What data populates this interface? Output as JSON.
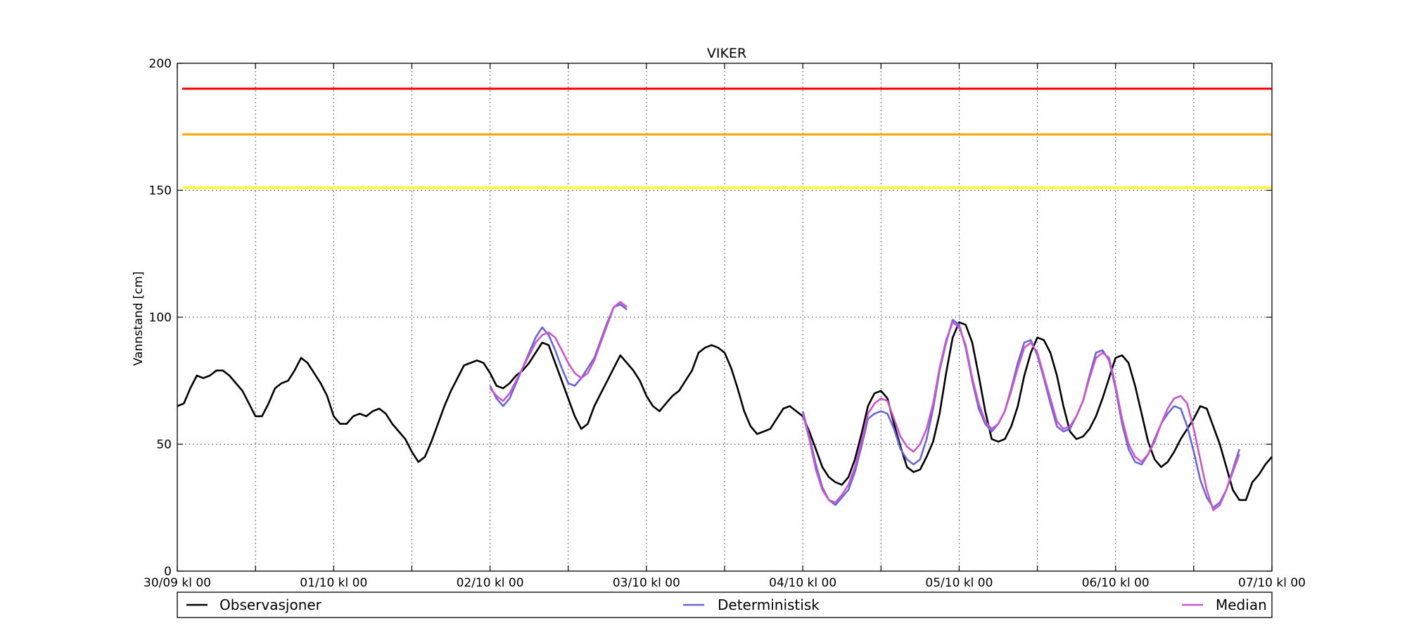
{
  "chart_data": {
    "type": "line",
    "title": "VIKER",
    "xlabel": "",
    "ylabel": "Vannstand [cm]",
    "ylim": [
      0,
      200
    ],
    "yticks": [
      0,
      50,
      100,
      150,
      200
    ],
    "xlim_hours": [
      0,
      168
    ],
    "xticks": [
      {
        "label": "30/09 kl 00",
        "hour": 0
      },
      {
        "label": "01/10 kl 00",
        "hour": 24
      },
      {
        "label": "02/10 kl 00",
        "hour": 48
      },
      {
        "label": "03/10 kl 00",
        "hour": 72
      },
      {
        "label": "04/10 kl 00",
        "hour": 96
      },
      {
        "label": "05/10 kl 00",
        "hour": 120
      },
      {
        "label": "06/10 kl 00",
        "hour": 144
      },
      {
        "label": "07/10 kl 00",
        "hour": 168
      }
    ],
    "minor_grid_hours": [
      12,
      36,
      60,
      84,
      108,
      132,
      156
    ],
    "grid": true,
    "legend_position": "bottom",
    "thresholds": [
      {
        "value": 190,
        "color": "#ff0000"
      },
      {
        "value": 172,
        "color": "#ffa500"
      },
      {
        "value": 151,
        "color": "#ffff00"
      }
    ],
    "series": [
      {
        "name": "Observasjoner",
        "color": "#000000",
        "x": [
          0,
          1,
          2,
          3,
          4,
          5,
          6,
          7,
          8,
          9,
          10,
          11,
          12,
          13,
          14,
          15,
          16,
          17,
          18,
          19,
          20,
          21,
          22,
          23,
          24,
          25,
          26,
          27,
          28,
          29,
          30,
          31,
          32,
          33,
          34,
          35,
          36,
          37,
          38,
          39,
          40,
          41,
          42,
          43,
          44,
          45,
          46,
          47,
          48,
          49,
          50,
          51,
          52,
          53,
          54,
          55,
          56,
          57,
          58,
          59,
          60,
          61,
          62,
          63,
          64,
          65,
          66,
          67,
          68,
          69,
          70,
          71,
          72,
          73,
          74,
          75,
          76,
          77,
          78,
          79,
          80,
          81,
          82,
          83,
          84,
          85,
          86,
          87,
          88,
          89,
          90,
          91,
          92,
          93,
          94,
          95,
          96,
          97,
          98,
          99,
          100,
          101,
          102,
          103,
          104,
          105,
          106,
          107,
          108,
          109,
          110,
          111,
          112,
          113,
          114,
          115,
          116,
          117,
          118,
          119,
          120,
          121,
          122,
          123,
          124,
          125,
          126,
          127,
          128,
          129,
          130,
          131,
          132,
          133,
          134,
          135,
          136,
          137,
          138,
          139,
          140,
          141,
          142,
          143,
          144,
          145,
          146,
          147,
          148,
          149,
          150,
          151,
          152,
          153,
          154,
          155,
          156,
          157,
          158,
          159,
          160,
          161,
          162,
          163,
          164,
          165,
          166,
          167,
          168
        ],
        "values": [
          65,
          66,
          72,
          77,
          76,
          77,
          79,
          79,
          77,
          74,
          71,
          66,
          61,
          61,
          66,
          72,
          74,
          75,
          79,
          84,
          82,
          78,
          74,
          69,
          61,
          58,
          58,
          61,
          62,
          61,
          63,
          64,
          62,
          58,
          55,
          52,
          47,
          43,
          45,
          51,
          58,
          65,
          71,
          76,
          81,
          82,
          83,
          82,
          78,
          73,
          72,
          74,
          77,
          79,
          82,
          86,
          90,
          89,
          82,
          75,
          68,
          61,
          56,
          58,
          65,
          70,
          75,
          80,
          85,
          82,
          79,
          75,
          69,
          65,
          63,
          66,
          69,
          71,
          75,
          79,
          86,
          88,
          89,
          88,
          86,
          80,
          72,
          63,
          57,
          54,
          55,
          56,
          60,
          64,
          65,
          63,
          61,
          55,
          48,
          41,
          37,
          35,
          34,
          37,
          44,
          54,
          65,
          70,
          71,
          68,
          58,
          49,
          41,
          39,
          40,
          45,
          51,
          62,
          78,
          92,
          98,
          97,
          90,
          77,
          63,
          52,
          51,
          52,
          57,
          65,
          77,
          86,
          92,
          91,
          86,
          77,
          65,
          55,
          52,
          53,
          56,
          61,
          68,
          76,
          84,
          85,
          82,
          73,
          62,
          51,
          44,
          41,
          43,
          47,
          52,
          56,
          60,
          65,
          64,
          57,
          50,
          41,
          32,
          28,
          28,
          35,
          38,
          42,
          45
        ]
      },
      {
        "name": "Deterministisk",
        "color": "#6666dd",
        "x": [
          48,
          49,
          50,
          51,
          52,
          53,
          54,
          55,
          56,
          57,
          58,
          59,
          60,
          61,
          62,
          63,
          64,
          65,
          66,
          67,
          68,
          69,
          70,
          71,
          72,
          null,
          96,
          97,
          98,
          99,
          100,
          101,
          102,
          103,
          104,
          105,
          106,
          107,
          108,
          109,
          110,
          111,
          112,
          113,
          114,
          115,
          116,
          117,
          118,
          119,
          120,
          121,
          122,
          123,
          124,
          125,
          126,
          127,
          128,
          129,
          130,
          131,
          132,
          133,
          134,
          135,
          136,
          137,
          138,
          139,
          140,
          141,
          142,
          143,
          144,
          145,
          146,
          147,
          148,
          149,
          150,
          151,
          152,
          153,
          154,
          155,
          156,
          157,
          158,
          159,
          160,
          161,
          162,
          163,
          164,
          165,
          166,
          167,
          168
        ],
        "values": [
          73,
          68,
          65,
          68,
          74,
          80,
          86,
          92,
          96,
          93,
          87,
          80,
          74,
          73,
          76,
          80,
          84,
          91,
          98,
          104,
          105,
          103,
          null,
          null,
          null,
          null,
          63,
          53,
          42,
          33,
          28,
          26,
          29,
          32,
          39,
          49,
          60,
          62,
          63,
          62,
          56,
          48,
          44,
          42,
          44,
          52,
          64,
          79,
          90,
          99,
          97,
          88,
          75,
          64,
          58,
          55,
          58,
          63,
          72,
          82,
          90,
          91,
          85,
          76,
          66,
          57,
          55,
          56,
          61,
          67,
          77,
          86,
          87,
          83,
          72,
          58,
          48,
          43,
          42,
          46,
          52,
          58,
          62,
          65,
          64,
          57,
          47,
          36,
          29,
          25,
          27,
          32,
          40,
          48,
          null,
          null,
          null,
          null,
          null
        ]
      },
      {
        "name": "Median",
        "color": "#cc55cc",
        "x": [
          48,
          49,
          50,
          51,
          52,
          53,
          54,
          55,
          56,
          57,
          58,
          59,
          60,
          61,
          62,
          63,
          64,
          65,
          66,
          67,
          68,
          69,
          70,
          71,
          72,
          null,
          96,
          97,
          98,
          99,
          100,
          101,
          102,
          103,
          104,
          105,
          106,
          107,
          108,
          109,
          110,
          111,
          112,
          113,
          114,
          115,
          116,
          117,
          118,
          119,
          120,
          121,
          122,
          123,
          124,
          125,
          126,
          127,
          128,
          129,
          130,
          131,
          132,
          133,
          134,
          135,
          136,
          137,
          138,
          139,
          140,
          141,
          142,
          143,
          144,
          145,
          146,
          147,
          148,
          149,
          150,
          151,
          152,
          153,
          154,
          155,
          156,
          157,
          158,
          159,
          160,
          161,
          162,
          163,
          164,
          165,
          166,
          167,
          168
        ],
        "values": [
          72,
          69,
          67,
          70,
          75,
          80,
          85,
          90,
          93,
          94,
          92,
          87,
          82,
          78,
          76,
          78,
          83,
          90,
          97,
          104,
          106,
          104,
          null,
          null,
          null,
          null,
          62,
          52,
          40,
          32,
          28,
          27,
          30,
          34,
          41,
          51,
          62,
          66,
          68,
          67,
          60,
          53,
          49,
          47,
          50,
          56,
          66,
          80,
          91,
          98,
          96,
          89,
          76,
          66,
          59,
          56,
          58,
          63,
          71,
          80,
          88,
          90,
          86,
          77,
          68,
          59,
          56,
          57,
          61,
          67,
          76,
          84,
          86,
          84,
          73,
          60,
          50,
          45,
          43,
          46,
          51,
          58,
          64,
          68,
          69,
          66,
          56,
          44,
          32,
          24,
          26,
          32,
          39,
          46,
          null,
          null,
          null,
          null,
          null
        ]
      }
    ]
  }
}
